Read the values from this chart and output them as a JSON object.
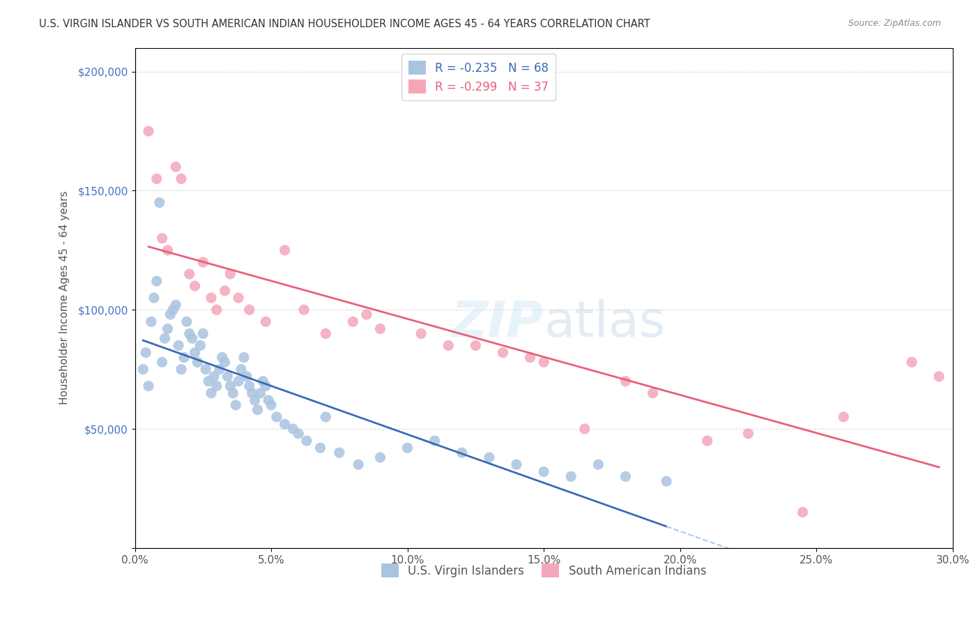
{
  "title": "U.S. VIRGIN ISLANDER VS SOUTH AMERICAN INDIAN HOUSEHOLDER INCOME AGES 45 - 64 YEARS CORRELATION CHART",
  "source": "Source: ZipAtlas.com",
  "ylabel": "Householder Income Ages 45 - 64 years",
  "xlabel_ticks": [
    "0.0%",
    "5.0%",
    "10.0%",
    "15.0%",
    "20.0%",
    "25.0%",
    "30.0%"
  ],
  "xlabel_vals": [
    0.0,
    5.0,
    10.0,
    15.0,
    20.0,
    25.0,
    30.0
  ],
  "ylabel_ticks": [
    0,
    50000,
    100000,
    150000,
    200000
  ],
  "ylabel_labels": [
    "",
    "$50,000",
    "$100,000",
    "$150,000",
    "$200,000"
  ],
  "xmin": 0.0,
  "xmax": 30.0,
  "ymin": 0,
  "ymax": 210000,
  "blue_R": -0.235,
  "blue_N": 68,
  "pink_R": -0.299,
  "pink_N": 37,
  "blue_color": "#aac4e0",
  "pink_color": "#f4a7b9",
  "blue_line_color": "#3a6ab5",
  "pink_line_color": "#e8607a",
  "blue_dashed_color": "#aac8e8",
  "watermark": "ZIPatlas",
  "legend_label_blue": "U.S. Virgin Islanders",
  "legend_label_pink": "South American Indians",
  "blue_x": [
    0.3,
    0.4,
    0.5,
    0.6,
    0.7,
    0.8,
    0.9,
    1.0,
    1.1,
    1.2,
    1.3,
    1.4,
    1.5,
    1.6,
    1.7,
    1.8,
    1.9,
    2.0,
    2.1,
    2.2,
    2.3,
    2.4,
    2.5,
    2.6,
    2.7,
    2.8,
    2.9,
    3.0,
    3.1,
    3.2,
    3.3,
    3.4,
    3.5,
    3.6,
    3.7,
    3.8,
    3.9,
    4.0,
    4.1,
    4.2,
    4.3,
    4.4,
    4.5,
    4.6,
    4.7,
    4.8,
    4.9,
    5.0,
    5.2,
    5.5,
    5.8,
    6.0,
    6.3,
    6.8,
    7.0,
    7.5,
    8.2,
    9.0,
    10.0,
    11.0,
    12.0,
    13.0,
    14.0,
    15.0,
    16.0,
    17.0,
    18.0,
    19.5
  ],
  "blue_y": [
    75000,
    82000,
    68000,
    95000,
    105000,
    112000,
    145000,
    78000,
    88000,
    92000,
    98000,
    100000,
    102000,
    85000,
    75000,
    80000,
    95000,
    90000,
    88000,
    82000,
    78000,
    85000,
    90000,
    75000,
    70000,
    65000,
    72000,
    68000,
    75000,
    80000,
    78000,
    72000,
    68000,
    65000,
    60000,
    70000,
    75000,
    80000,
    72000,
    68000,
    65000,
    62000,
    58000,
    65000,
    70000,
    68000,
    62000,
    60000,
    55000,
    52000,
    50000,
    48000,
    45000,
    42000,
    55000,
    40000,
    35000,
    38000,
    42000,
    45000,
    40000,
    38000,
    35000,
    32000,
    30000,
    35000,
    30000,
    28000
  ],
  "pink_x": [
    0.5,
    0.8,
    1.0,
    1.2,
    1.5,
    1.7,
    2.0,
    2.2,
    2.5,
    2.8,
    3.0,
    3.3,
    3.5,
    3.8,
    4.2,
    4.8,
    5.5,
    6.2,
    7.0,
    8.0,
    8.5,
    9.0,
    10.5,
    11.5,
    12.5,
    13.5,
    14.5,
    15.0,
    16.5,
    18.0,
    19.0,
    21.0,
    22.5,
    24.5,
    26.0,
    28.5,
    29.5
  ],
  "pink_y": [
    175000,
    155000,
    130000,
    125000,
    160000,
    155000,
    115000,
    110000,
    120000,
    105000,
    100000,
    108000,
    115000,
    105000,
    100000,
    95000,
    125000,
    100000,
    90000,
    95000,
    98000,
    92000,
    90000,
    85000,
    85000,
    82000,
    80000,
    78000,
    50000,
    70000,
    65000,
    45000,
    48000,
    15000,
    55000,
    78000,
    72000
  ]
}
